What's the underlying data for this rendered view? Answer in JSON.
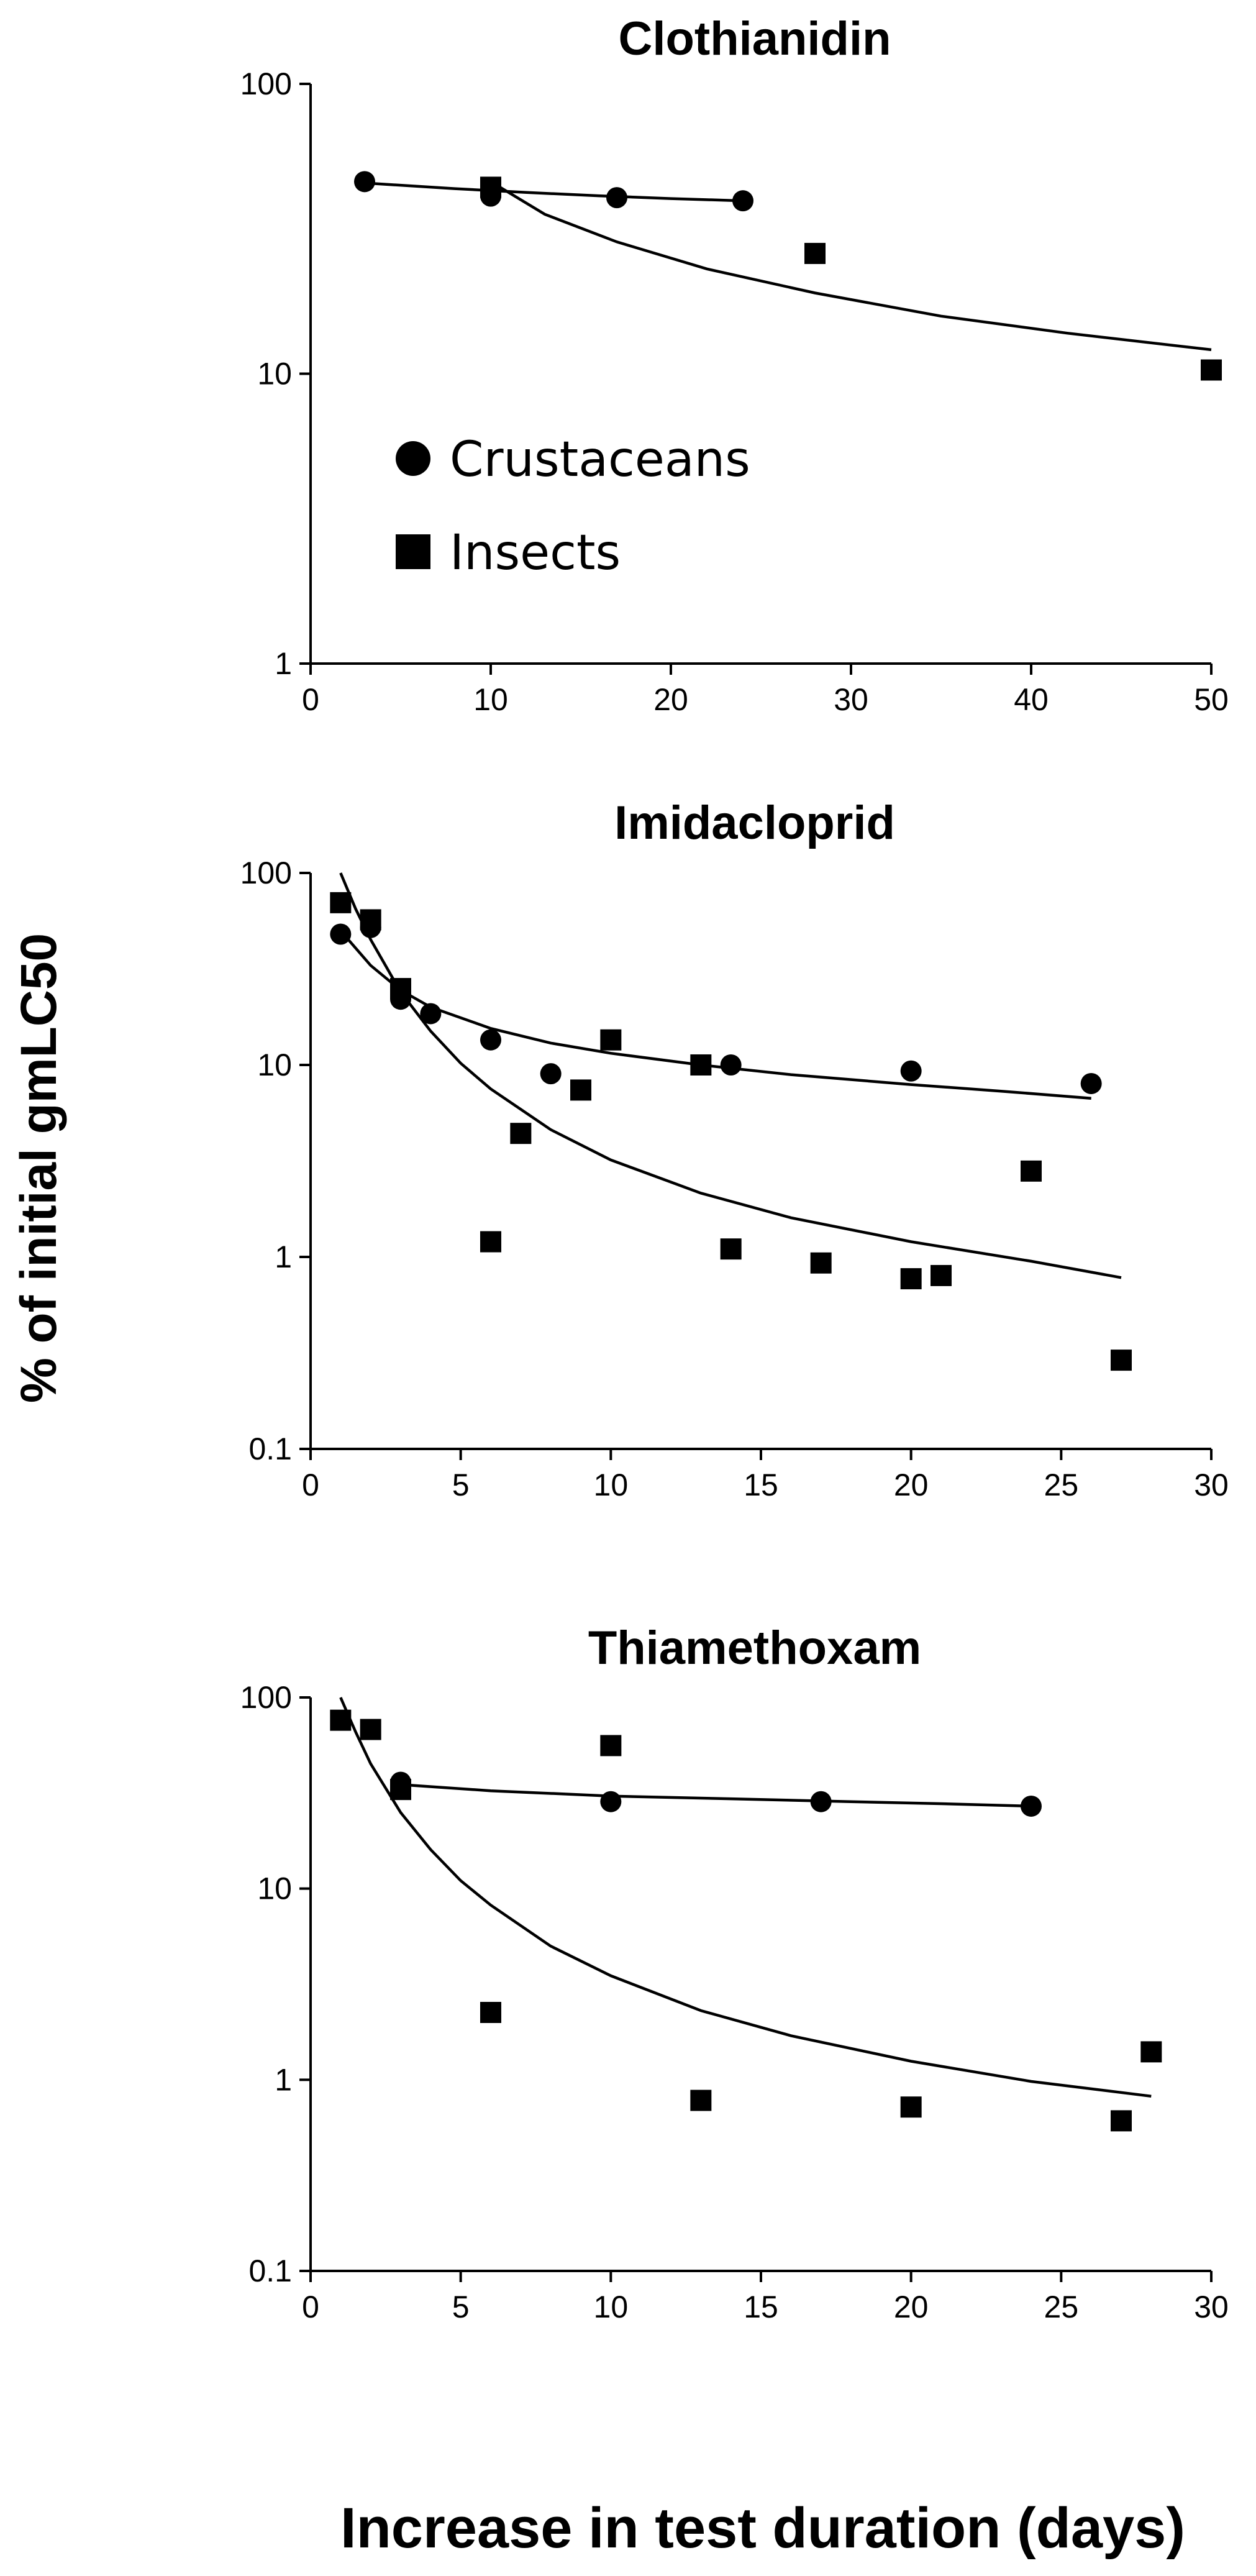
{
  "ylabel": "% of initial gmLC50",
  "xlabel": "Increase in test duration (days)",
  "legend": [
    {
      "name": "Crustaceans",
      "marker": "circle"
    },
    {
      "name": "Insects",
      "marker": "square"
    }
  ],
  "chart_data": [
    {
      "type": "scatter",
      "title": "Clothianidin",
      "yscale": "log",
      "xlim": [
        0,
        50
      ],
      "ylim": [
        1,
        100
      ],
      "xticks": [
        "0",
        "10",
        "20",
        "30",
        "40",
        "50"
      ],
      "yticks": [
        "1",
        "10",
        "100"
      ],
      "legend_position": "left",
      "series": [
        {
          "name": "Crustaceans",
          "marker": "circle",
          "points": [
            [
              3,
              46
            ],
            [
              10,
              41
            ],
            [
              17,
              40.5
            ],
            [
              24,
              39.5
            ]
          ]
        },
        {
          "name": "Insects",
          "marker": "square",
          "points": [
            [
              10,
              44
            ],
            [
              28,
              26
            ],
            [
              50,
              10.3
            ]
          ]
        }
      ],
      "fits": [
        {
          "series": "Crustaceans",
          "points": [
            [
              3,
              45.5
            ],
            [
              8,
              43.5
            ],
            [
              12,
              42.2
            ],
            [
              16,
              41.1
            ],
            [
              20,
              40.2
            ],
            [
              24,
              39.5
            ]
          ]
        },
        {
          "series": "Insects",
          "points": [
            [
              10,
              46
            ],
            [
              13,
              35.5
            ],
            [
              17,
              28.5
            ],
            [
              22,
              23
            ],
            [
              28,
              19
            ],
            [
              35,
              15.8
            ],
            [
              42,
              13.8
            ],
            [
              50,
              12.1
            ]
          ]
        }
      ]
    },
    {
      "type": "scatter",
      "title": "Imidacloprid",
      "yscale": "log",
      "xlim": [
        0,
        30
      ],
      "ylim": [
        0.1,
        100
      ],
      "xticks": [
        "0",
        "5",
        "10",
        "15",
        "20",
        "25",
        "30"
      ],
      "yticks": [
        "0.1",
        "1",
        "10",
        "100"
      ],
      "series": [
        {
          "name": "Crustaceans",
          "marker": "circle",
          "points": [
            [
              1,
              48
            ],
            [
              2,
              52
            ],
            [
              3,
              22
            ],
            [
              4,
              18.5
            ],
            [
              6,
              13.5
            ],
            [
              8,
              9
            ],
            [
              14,
              10
            ],
            [
              20,
              9.3
            ],
            [
              26,
              8
            ]
          ]
        },
        {
          "name": "Insects",
          "marker": "square",
          "points": [
            [
              1,
              70
            ],
            [
              2,
              57
            ],
            [
              3,
              25
            ],
            [
              6,
              1.2
            ],
            [
              7,
              4.4
            ],
            [
              9,
              7.4
            ],
            [
              10,
              13.5
            ],
            [
              13,
              10
            ],
            [
              14,
              1.1
            ],
            [
              17,
              0.93
            ],
            [
              20,
              0.77
            ],
            [
              21,
              0.8
            ],
            [
              24,
              2.8
            ],
            [
              27,
              0.29
            ]
          ]
        }
      ],
      "fits": [
        {
          "series": "Crustaceans",
          "points": [
            [
              1,
              50
            ],
            [
              2,
              33
            ],
            [
              3,
              24.5
            ],
            [
              4,
              20
            ],
            [
              6,
              15.5
            ],
            [
              8,
              13
            ],
            [
              10,
              11.5
            ],
            [
              13,
              10
            ],
            [
              16,
              8.9
            ],
            [
              20,
              7.9
            ],
            [
              23,
              7.3
            ],
            [
              26,
              6.7
            ]
          ]
        },
        {
          "series": "Insects",
          "points": [
            [
              1,
              100
            ],
            [
              1.5,
              65
            ],
            [
              2,
              45
            ],
            [
              3,
              24
            ],
            [
              4,
              15
            ],
            [
              5,
              10.2
            ],
            [
              6,
              7.5
            ],
            [
              8,
              4.6
            ],
            [
              10,
              3.2
            ],
            [
              13,
              2.15
            ],
            [
              16,
              1.6
            ],
            [
              20,
              1.2
            ],
            [
              24,
              0.95
            ],
            [
              27,
              0.78
            ]
          ]
        }
      ]
    },
    {
      "type": "scatter",
      "title": "Thiamethoxam",
      "yscale": "log",
      "xlim": [
        0,
        30
      ],
      "ylim": [
        0.1,
        100
      ],
      "xticks": [
        "0",
        "5",
        "10",
        "15",
        "20",
        "25",
        "30"
      ],
      "yticks": [
        "0.1",
        "1",
        "10",
        "100"
      ],
      "series": [
        {
          "name": "Crustaceans",
          "marker": "circle",
          "points": [
            [
              3,
              36
            ],
            [
              10,
              28.5
            ],
            [
              17,
              28.5
            ],
            [
              24,
              27
            ]
          ]
        },
        {
          "name": "Insects",
          "marker": "square",
          "points": [
            [
              1,
              76
            ],
            [
              2,
              68
            ],
            [
              3,
              33
            ],
            [
              6,
              2.25
            ],
            [
              10,
              56
            ],
            [
              13,
              0.78
            ],
            [
              20,
              0.72
            ],
            [
              27,
              0.61
            ],
            [
              28,
              1.4
            ]
          ]
        }
      ],
      "fits": [
        {
          "series": "Crustaceans",
          "points": [
            [
              3,
              35
            ],
            [
              6,
              32.5
            ],
            [
              10,
              30.5
            ],
            [
              14,
              29.5
            ],
            [
              18,
              28.5
            ],
            [
              21,
              27.8
            ],
            [
              24,
              27
            ]
          ]
        },
        {
          "series": "Insects",
          "points": [
            [
              1,
              100
            ],
            [
              1.5,
              66
            ],
            [
              2,
              45
            ],
            [
              3,
              25
            ],
            [
              4,
              16
            ],
            [
              5,
              11
            ],
            [
              6,
              8.2
            ],
            [
              8,
              5
            ],
            [
              10,
              3.5
            ],
            [
              13,
              2.3
            ],
            [
              16,
              1.7
            ],
            [
              20,
              1.25
            ],
            [
              24,
              0.98
            ],
            [
              28,
              0.82
            ]
          ]
        }
      ]
    }
  ]
}
